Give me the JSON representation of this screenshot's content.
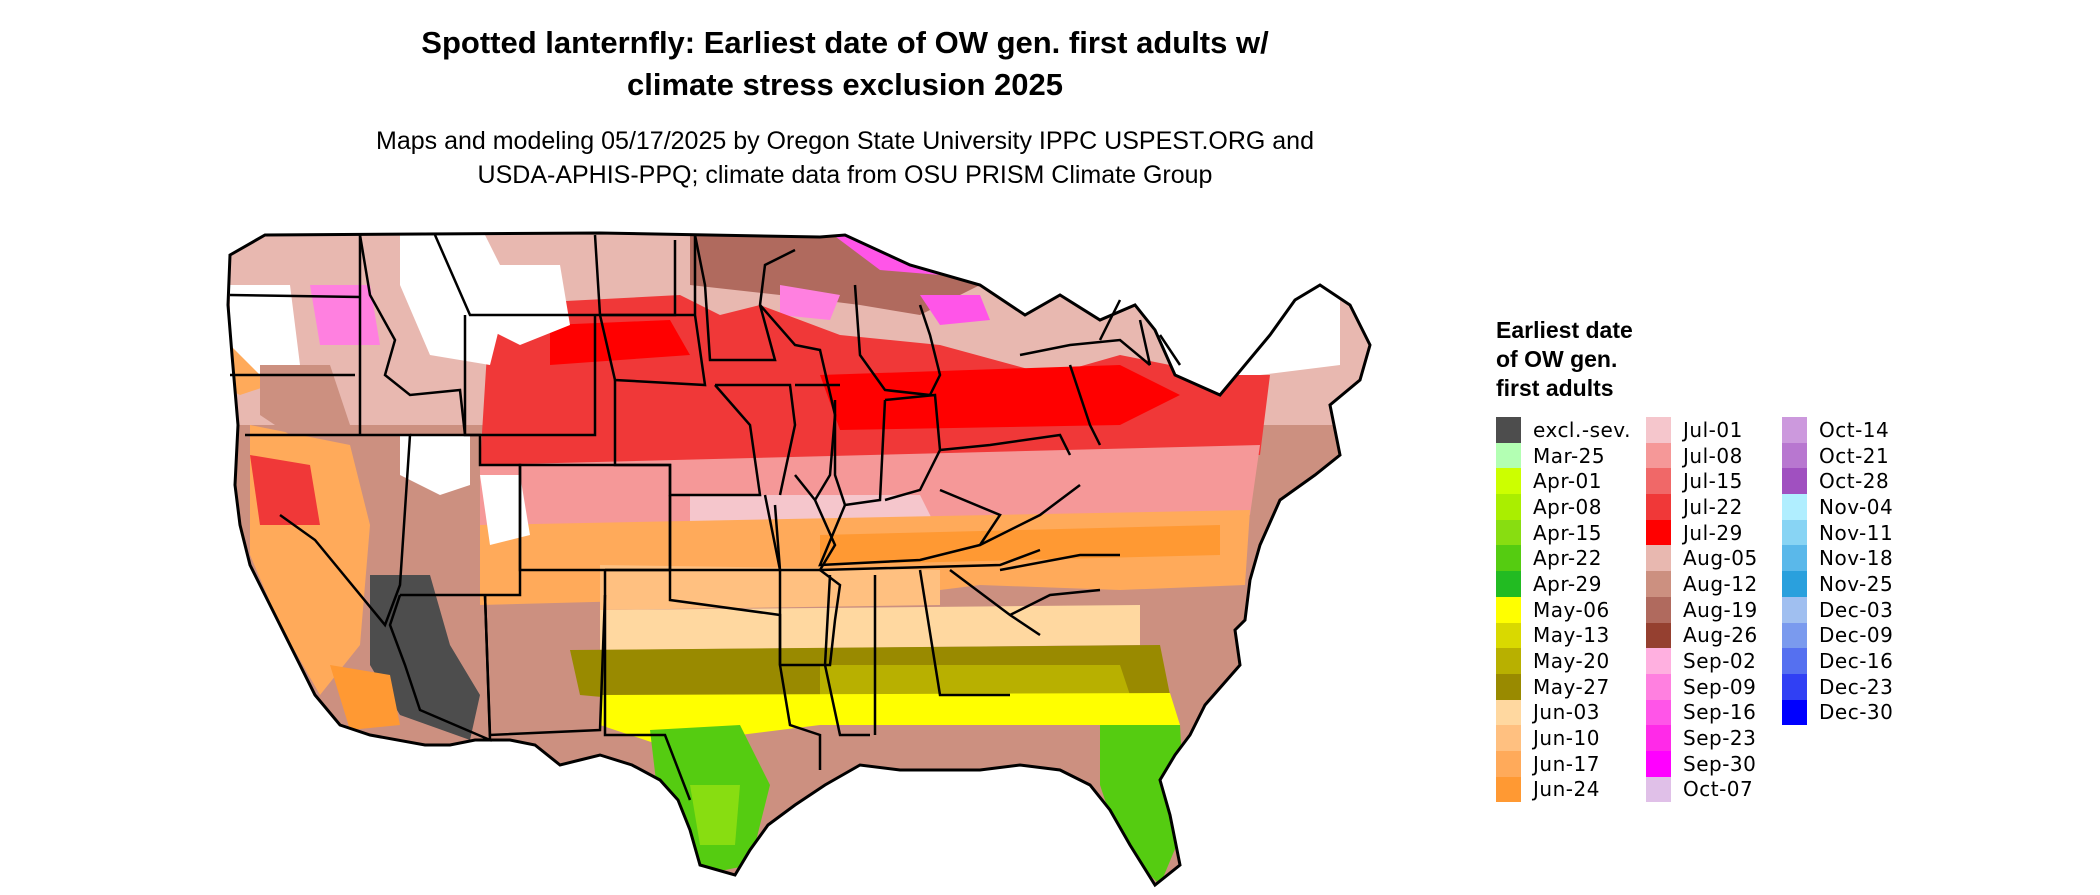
{
  "title_line1": "Spotted lanternfly: Earliest date of OW gen. first adults w/",
  "title_line2": "climate stress exclusion 2025",
  "subtitle_line1": "Maps and modeling 05/17/2025 by Oregon State University IPPC USPEST.ORG and",
  "subtitle_line2": "USDA-APHIS-PPQ; climate data from OSU PRISM Climate Group",
  "legend": {
    "title_lines": [
      "Earliest date",
      "of OW gen.",
      "first adults"
    ],
    "columns": [
      [
        {
          "label": "excl.-sev.",
          "color": "#4d4d4d"
        },
        {
          "label": "Mar-25",
          "color": "#b3ffb3"
        },
        {
          "label": "Apr-01",
          "color": "#ccff00"
        },
        {
          "label": "Apr-08",
          "color": "#aaee00"
        },
        {
          "label": "Apr-15",
          "color": "#88dd11"
        },
        {
          "label": "Apr-22",
          "color": "#55cc11"
        },
        {
          "label": "Apr-29",
          "color": "#22bb22"
        },
        {
          "label": "May-06",
          "color": "#ffff00"
        },
        {
          "label": "May-13",
          "color": "#d9d900"
        },
        {
          "label": "May-20",
          "color": "#b8b000"
        },
        {
          "label": "May-27",
          "color": "#998a00"
        },
        {
          "label": "Jun-03",
          "color": "#ffd8a0"
        },
        {
          "label": "Jun-10",
          "color": "#ffc080"
        },
        {
          "label": "Jun-17",
          "color": "#ffaa5a"
        },
        {
          "label": "Jun-24",
          "color": "#ff9933"
        }
      ],
      [
        {
          "label": "Jul-01",
          "color": "#f5c6cc"
        },
        {
          "label": "Jul-08",
          "color": "#f59898"
        },
        {
          "label": "Jul-15",
          "color": "#f06868"
        },
        {
          "label": "Jul-22",
          "color": "#f03838"
        },
        {
          "label": "Jul-29",
          "color": "#ff0000"
        },
        {
          "label": "Aug-05",
          "color": "#e8b8b0"
        },
        {
          "label": "Aug-12",
          "color": "#cc9080"
        },
        {
          "label": "Aug-19",
          "color": "#b06a5e"
        },
        {
          "label": "Aug-26",
          "color": "#954030"
        },
        {
          "label": "Sep-02",
          "color": "#ffb0e0"
        },
        {
          "label": "Sep-09",
          "color": "#ff80e0"
        },
        {
          "label": "Sep-16",
          "color": "#ff55e8"
        },
        {
          "label": "Sep-23",
          "color": "#ff2ae8"
        },
        {
          "label": "Sep-30",
          "color": "#ff00ff"
        },
        {
          "label": "Oct-07",
          "color": "#e0c0e8"
        }
      ],
      [
        {
          "label": "Oct-14",
          "color": "#cc99dd"
        },
        {
          "label": "Oct-21",
          "color": "#b877d0"
        },
        {
          "label": "Oct-28",
          "color": "#a050c0"
        },
        {
          "label": "Nov-04",
          "color": "#b0eeff"
        },
        {
          "label": "Nov-11",
          "color": "#88d4f4"
        },
        {
          "label": "Nov-18",
          "color": "#5ab8ea"
        },
        {
          "label": "Nov-25",
          "color": "#2aa0dd"
        },
        {
          "label": "Dec-03",
          "color": "#a0bff0"
        },
        {
          "label": "Dec-09",
          "color": "#7a9aee"
        },
        {
          "label": "Dec-16",
          "color": "#5570f0"
        },
        {
          "label": "Dec-23",
          "color": "#3040f4"
        },
        {
          "label": "Dec-30",
          "color": "#0000ff"
        }
      ]
    ]
  },
  "map_colors": {
    "excluded": "#4d4d4d",
    "green_dark": "#55cc11",
    "green_mid": "#88dd11",
    "yellow": "#ffff00",
    "olive": "#998a00",
    "olive_light": "#b8b000",
    "tan": "#ffd8a0",
    "orange_light": "#ffc080",
    "orange": "#ffaa5a",
    "orange_dark": "#ff9933",
    "pink_light": "#f5c6cc",
    "pink": "#f59898",
    "red": "#ff0000",
    "red_mid": "#f03838",
    "brown_light": "#e8b8b0",
    "brown": "#cc9080",
    "brown_dark": "#b06a5e",
    "magenta": "#ff55e8",
    "magenta_light": "#ff80e0",
    "white": "#ffffff"
  }
}
